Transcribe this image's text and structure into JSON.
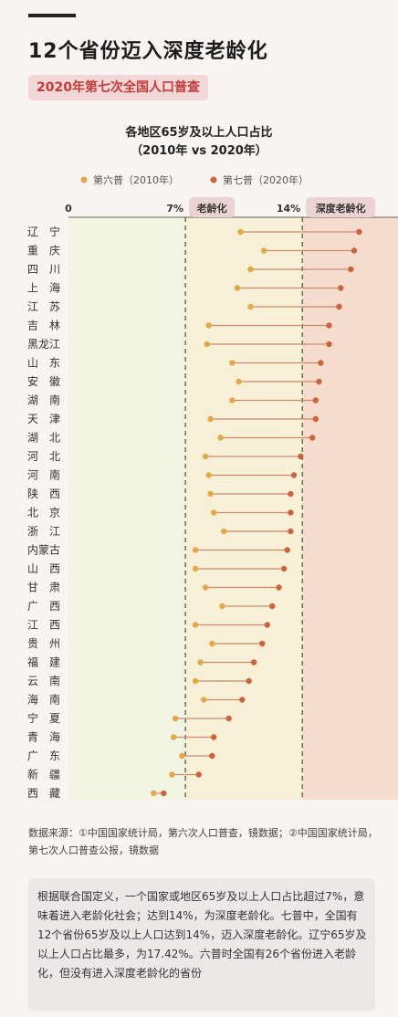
{
  "header": {
    "title": "12个省份迈入深度老龄化",
    "subtitle": "2020年第七次全国人口普查"
  },
  "chart_data": {
    "type": "dumbbell",
    "title_line1": "各地区65岁及以上人口占比",
    "title_line2": "（2010年 vs 2020年）",
    "legend": [
      {
        "name": "第六普（2010年）",
        "color": "#e2a94c"
      },
      {
        "name": "第七普（2020年）",
        "color": "#c76540"
      }
    ],
    "xlim": [
      0,
      20
    ],
    "xticks": [
      {
        "label": "0",
        "value": 0
      },
      {
        "label": "7%",
        "value": 7
      },
      {
        "label": "14%",
        "value": 14
      }
    ],
    "zones": [
      {
        "label": "老龄化",
        "from": 7,
        "to": 14,
        "color": "#f7f0d6"
      },
      {
        "label": "深度老龄化",
        "from": 14,
        "to": 20,
        "color": "#f6dccd"
      }
    ],
    "base_zone_color": "#f2f4e2",
    "provinces": [
      "辽　宁",
      "重　庆",
      "四　川",
      "上　海",
      "江　苏",
      "吉　林",
      "黑龙江",
      "山　东",
      "安　徽",
      "湖　南",
      "天　津",
      "湖　北",
      "河　北",
      "河　南",
      "陕　西",
      "北　京",
      "浙　江",
      "内蒙古",
      "山　西",
      "甘　肃",
      "广　西",
      "江　西",
      "贵　州",
      "福　建",
      "云　南",
      "海　南",
      "宁　夏",
      "青　海",
      "广　东",
      "新　疆",
      "西　藏"
    ],
    "series": [
      {
        "name": "第六普（2010年）",
        "values": [
          10.3,
          11.7,
          10.9,
          10.1,
          10.9,
          8.4,
          8.3,
          9.8,
          10.2,
          9.8,
          8.5,
          9.1,
          8.2,
          8.4,
          8.5,
          8.7,
          9.3,
          7.6,
          7.6,
          8.2,
          9.2,
          7.6,
          8.6,
          7.9,
          7.6,
          8.1,
          6.4,
          6.3,
          6.8,
          6.2,
          5.1
        ]
      },
      {
        "name": "第七普（2020年）",
        "values": [
          17.4,
          17.1,
          16.9,
          16.3,
          16.2,
          15.6,
          15.6,
          15.1,
          15.0,
          14.8,
          14.8,
          14.6,
          13.9,
          13.5,
          13.3,
          13.3,
          13.3,
          13.1,
          12.9,
          12.6,
          12.2,
          11.9,
          11.6,
          11.1,
          10.8,
          10.4,
          9.6,
          8.7,
          8.6,
          7.8,
          5.7
        ]
      }
    ]
  },
  "source": "数据来源：①中国国家统计局，第六次人口普查，镜数据；②中国国家统计局，第七次人口普查公报，镜数据",
  "note": "根据联合国定义，一个国家或地区65岁及以上人口占比超过7%，意味着进入老龄化社会；达到14%，为深度老龄化。七普中，全国有12个省份65岁及以上人口达到14%，迈入深度老龄化。辽宁65岁及以上人口占比最多，为17.42%。六普时全国有26个省份进入老龄化，但没有进入深度老龄化的省份"
}
